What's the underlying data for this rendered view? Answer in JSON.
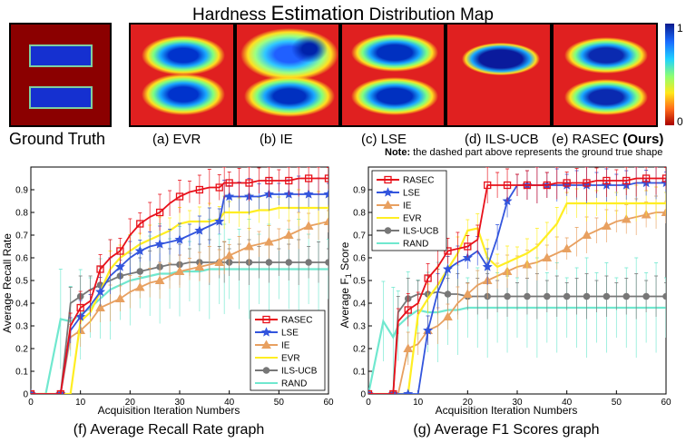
{
  "header": {
    "title_prefix": "Hardness ",
    "title_big": "Estimation",
    "title_suffix": " Distribution Map"
  },
  "heatmaps": {
    "ground_truth": "Ground Truth",
    "evr": "(a) EVR",
    "ie": "(b) IE",
    "lse": "(c) LSE",
    "ilsucb": "(d) ILS-UCB",
    "rasec": "(e) RASEC ",
    "rasec_ours": "(Ours)",
    "note_label": "Note:",
    "note_text": " the dashed part above represents the ground true shape",
    "colorbar_max": "1",
    "colorbar_min": "0"
  },
  "colors": {
    "RASEC": "#e8101a",
    "LSE": "#3355dd",
    "IE": "#e8a060",
    "EVR": "#ffee22",
    "ILS-UCB": "#777777",
    "RAND": "#70e8cf"
  },
  "chart_data": [
    {
      "type": "line",
      "title": "(f) Average Recall Rate graph",
      "xlabel": "Acquisition Iteration Numbers",
      "ylabel": "Average Recall Rate",
      "xlim": [
        0,
        60
      ],
      "ylim": [
        0,
        1.0
      ],
      "xticks": [
        0,
        10,
        20,
        30,
        40,
        50,
        60
      ],
      "yticks": [
        0,
        0.1,
        0.2,
        0.3,
        0.4,
        0.5,
        0.6,
        0.7,
        0.8,
        0.9
      ],
      "legend": "bottom-right",
      "x": [
        0,
        3,
        6,
        8,
        10,
        12,
        14,
        16,
        18,
        20,
        22,
        24,
        26,
        28,
        30,
        32,
        34,
        36,
        38,
        39,
        40,
        42,
        44,
        46,
        48,
        50,
        52,
        54,
        56,
        58,
        60
      ],
      "series": [
        {
          "name": "RASEC",
          "values": [
            0,
            0,
            0,
            0.3,
            0.38,
            0.41,
            0.55,
            0.6,
            0.63,
            0.7,
            0.75,
            0.78,
            0.8,
            0.84,
            0.87,
            0.89,
            0.9,
            0.91,
            0.91,
            0.93,
            0.93,
            0.93,
            0.93,
            0.94,
            0.94,
            0.94,
            0.94,
            0.95,
            0.95,
            0.95,
            0.95
          ]
        },
        {
          "name": "LSE",
          "values": [
            0,
            0,
            0,
            0.28,
            0.34,
            0.39,
            0.45,
            0.52,
            0.56,
            0.6,
            0.63,
            0.65,
            0.66,
            0.67,
            0.68,
            0.7,
            0.72,
            0.74,
            0.76,
            0.87,
            0.87,
            0.87,
            0.87,
            0.87,
            0.88,
            0.88,
            0.88,
            0.88,
            0.88,
            0.88,
            0.88
          ]
        },
        {
          "name": "IE",
          "values": [
            0,
            0,
            0,
            0.25,
            0.28,
            0.32,
            0.38,
            0.4,
            0.42,
            0.45,
            0.47,
            0.49,
            0.5,
            0.52,
            0.54,
            0.55,
            0.56,
            0.57,
            0.58,
            0.6,
            0.61,
            0.63,
            0.65,
            0.66,
            0.67,
            0.68,
            0.7,
            0.72,
            0.74,
            0.75,
            0.76
          ]
        },
        {
          "name": "EVR",
          "values": [
            0,
            0,
            0,
            0,
            0.32,
            0.36,
            0.45,
            0.55,
            0.6,
            0.63,
            0.66,
            0.68,
            0.7,
            0.72,
            0.75,
            0.76,
            0.76,
            0.76,
            0.77,
            0.8,
            0.8,
            0.8,
            0.8,
            0.81,
            0.81,
            0.82,
            0.82,
            0.82,
            0.82,
            0.82,
            0.82
          ]
        },
        {
          "name": "ILS-UCB",
          "values": [
            0,
            0,
            0,
            0.4,
            0.43,
            0.46,
            0.48,
            0.5,
            0.52,
            0.53,
            0.54,
            0.55,
            0.56,
            0.57,
            0.57,
            0.58,
            0.58,
            0.58,
            0.58,
            0.58,
            0.58,
            0.58,
            0.58,
            0.58,
            0.58,
            0.58,
            0.58,
            0.58,
            0.58,
            0.58,
            0.58
          ]
        },
        {
          "name": "RAND",
          "values": [
            0,
            0,
            0.33,
            0.32,
            0.35,
            0.38,
            0.42,
            0.46,
            0.48,
            0.5,
            0.51,
            0.52,
            0.53,
            0.53,
            0.54,
            0.54,
            0.54,
            0.55,
            0.55,
            0.55,
            0.55,
            0.55,
            0.55,
            0.55,
            0.55,
            0.55,
            0.55,
            0.55,
            0.55,
            0.55,
            0.55
          ]
        }
      ]
    },
    {
      "type": "line",
      "title": "(g) Average F1 Scores graph",
      "xlabel": "Acquisition Iteration Numbers",
      "ylabel": "Average F",
      "ylabel_sub": "1",
      "ylabel_suffix": " Score",
      "xlim": [
        0,
        60
      ],
      "ylim": [
        0,
        1.0
      ],
      "xticks": [
        0,
        10,
        20,
        30,
        40,
        50,
        60
      ],
      "yticks": [
        0,
        0.1,
        0.2,
        0.3,
        0.4,
        0.5,
        0.6,
        0.7,
        0.8,
        0.9
      ],
      "legend": "top-left",
      "x": [
        0,
        3,
        5,
        6,
        8,
        10,
        12,
        14,
        16,
        18,
        20,
        22,
        24,
        26,
        28,
        30,
        32,
        34,
        36,
        38,
        40,
        42,
        44,
        46,
        48,
        50,
        52,
        54,
        56,
        58,
        60
      ],
      "series": [
        {
          "name": "RASEC",
          "values": [
            0,
            0,
            0,
            0.32,
            0.37,
            0.4,
            0.51,
            0.56,
            0.63,
            0.64,
            0.65,
            0.68,
            0.92,
            0.92,
            0.92,
            0.92,
            0.92,
            0.92,
            0.92,
            0.93,
            0.93,
            0.93,
            0.93,
            0.94,
            0.94,
            0.94,
            0.94,
            0.95,
            0.95,
            0.95,
            0.95
          ]
        },
        {
          "name": "LSE",
          "values": [
            0,
            0,
            0,
            0,
            0,
            0,
            0.28,
            0.45,
            0.55,
            0.58,
            0.6,
            0.63,
            0.56,
            0.69,
            0.85,
            0.92,
            0.92,
            0.92,
            0.92,
            0.92,
            0.92,
            0.92,
            0.92,
            0.92,
            0.92,
            0.92,
            0.92,
            0.93,
            0.93,
            0.93,
            0.93
          ]
        },
        {
          "name": "IE",
          "values": [
            0,
            0,
            0,
            0,
            0.2,
            0.22,
            0.28,
            0.3,
            0.34,
            0.4,
            0.44,
            0.48,
            0.5,
            0.52,
            0.54,
            0.56,
            0.57,
            0.58,
            0.6,
            0.62,
            0.64,
            0.67,
            0.7,
            0.72,
            0.74,
            0.76,
            0.77,
            0.78,
            0.79,
            0.8,
            0.8
          ]
        },
        {
          "name": "EVR",
          "values": [
            0,
            0,
            0,
            0,
            0,
            0.35,
            0.42,
            0.48,
            0.55,
            0.62,
            0.72,
            0.73,
            0.6,
            0.56,
            0.58,
            0.6,
            0.62,
            0.65,
            0.7,
            0.75,
            0.84,
            0.84,
            0.84,
            0.84,
            0.84,
            0.84,
            0.84,
            0.84,
            0.84,
            0.84,
            0.84
          ]
        },
        {
          "name": "ILS-UCB",
          "values": [
            0,
            0,
            0,
            0.36,
            0.42,
            0.44,
            0.44,
            0.45,
            0.44,
            0.44,
            0.43,
            0.43,
            0.43,
            0.43,
            0.43,
            0.43,
            0.43,
            0.43,
            0.43,
            0.43,
            0.43,
            0.43,
            0.43,
            0.43,
            0.43,
            0.43,
            0.43,
            0.43,
            0.43,
            0.43,
            0.43
          ]
        },
        {
          "name": "RAND",
          "values": [
            0,
            0.32,
            0.25,
            0.3,
            0.34,
            0.37,
            0.36,
            0.36,
            0.37,
            0.37,
            0.38,
            0.38,
            0.38,
            0.38,
            0.38,
            0.38,
            0.38,
            0.38,
            0.38,
            0.38,
            0.38,
            0.38,
            0.38,
            0.38,
            0.38,
            0.38,
            0.38,
            0.38,
            0.38,
            0.38,
            0.38
          ]
        }
      ]
    }
  ]
}
